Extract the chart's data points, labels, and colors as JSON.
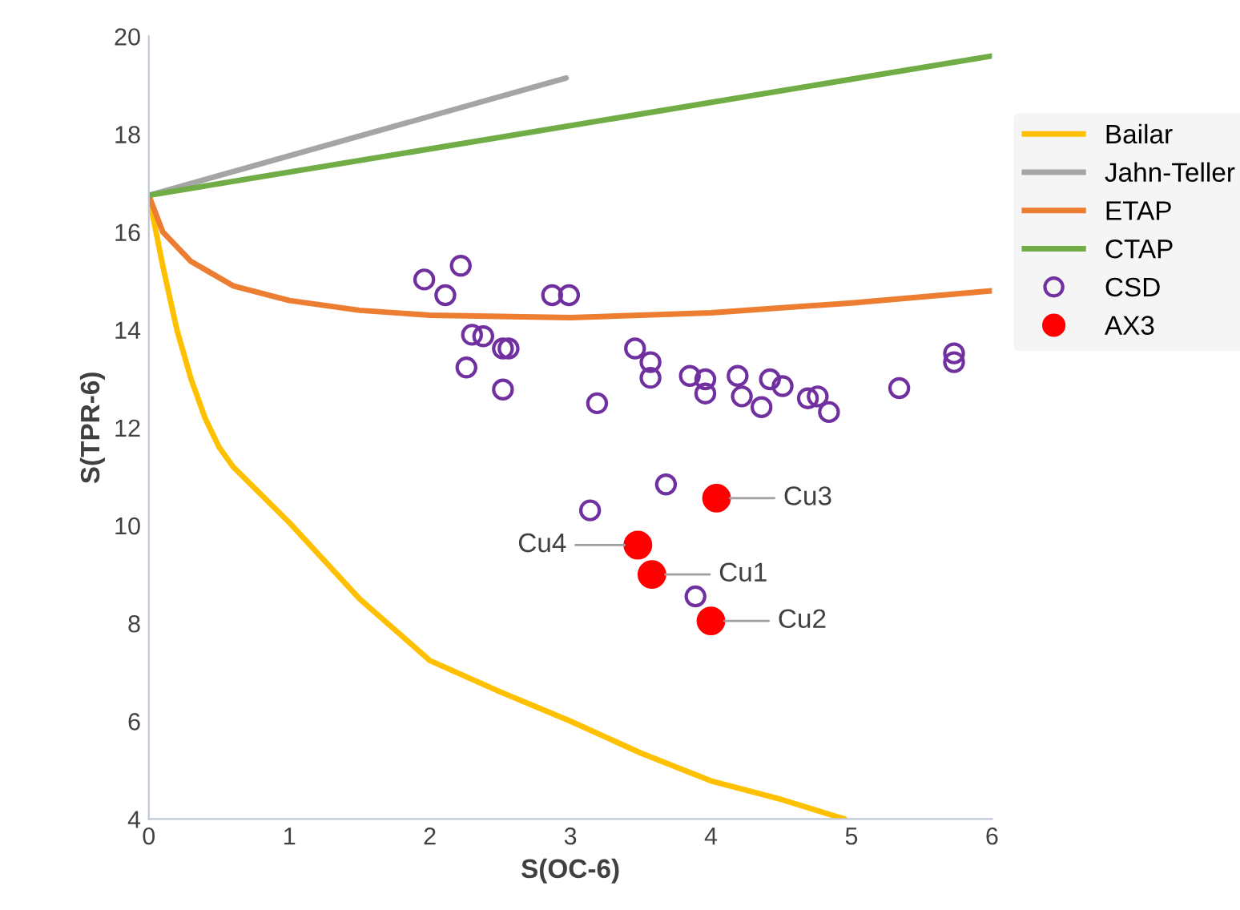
{
  "chart_data": {
    "type": "line",
    "xlabel": "S(OC-6)",
    "ylabel": "S(TPR-6)",
    "xlim": [
      0,
      6
    ],
    "xticks": [
      0,
      1,
      2,
      3,
      4,
      5,
      6
    ],
    "ylim": [
      4,
      20
    ],
    "yticks": [
      4,
      6,
      8,
      10,
      12,
      14,
      16,
      18,
      20
    ],
    "grid": false,
    "legend": "right",
    "series": [
      {
        "name": "Bailar",
        "color": "#ffc000",
        "x": [
          0,
          0.1,
          0.2,
          0.3,
          0.4,
          0.5,
          0.6,
          1,
          1.5,
          2,
          2.5,
          3,
          3.5,
          4,
          4.5,
          4.95
        ],
        "values": [
          16.75,
          15.3,
          14.0,
          13.0,
          12.2,
          11.6,
          11.2,
          10.06,
          8.5,
          7.24,
          6.6,
          6.0,
          5.35,
          4.78,
          4.4,
          4.0
        ]
      },
      {
        "name": "Jahn-Teller",
        "color": "#a5a5a5",
        "x": [
          0,
          2.97
        ],
        "values": [
          16.75,
          19.15
        ]
      },
      {
        "name": "ETAP",
        "color": "#ed7d31",
        "x": [
          0,
          0.1,
          0.3,
          0.6,
          1,
          1.5,
          2,
          3,
          4,
          5,
          6
        ],
        "values": [
          16.75,
          16.0,
          15.4,
          14.9,
          14.6,
          14.4,
          14.3,
          14.25,
          14.35,
          14.55,
          14.8
        ]
      },
      {
        "name": "CTAP",
        "color": "#70ad47",
        "x": [
          0,
          6
        ],
        "values": [
          16.75,
          19.6
        ]
      },
      {
        "name": "CSD",
        "type": "scatter",
        "marker": "circle",
        "color": "#7030a0",
        "x": [
          1.96,
          2.11,
          2.22,
          2.87,
          2.99,
          2.3,
          2.38,
          2.26,
          2.52,
          2.56,
          2.52,
          3.19,
          3.46,
          3.57,
          3.57,
          3.85,
          3.96,
          3.96,
          4.19,
          4.22,
          4.42,
          4.51,
          4.36,
          4.69,
          4.76,
          4.84,
          5.34,
          5.73,
          5.73,
          3.68,
          3.14,
          3.89
        ],
        "values": [
          15.03,
          14.71,
          15.31,
          14.71,
          14.71,
          13.9,
          13.87,
          13.23,
          13.62,
          13.62,
          12.78,
          12.5,
          13.62,
          13.34,
          13.02,
          13.06,
          12.99,
          12.7,
          13.06,
          12.64,
          12.99,
          12.85,
          12.42,
          12.6,
          12.64,
          12.32,
          12.81,
          13.52,
          13.34,
          10.84,
          10.31,
          8.55
        ]
      },
      {
        "name": "AX3",
        "type": "scatter",
        "marker": "circle",
        "color": "#ff0000",
        "x": [
          3.58,
          4.0,
          4.04,
          3.48
        ],
        "values": [
          9.0,
          8.05,
          10.56,
          9.6
        ]
      }
    ],
    "annotations": [
      {
        "text": "Cu1",
        "x": 3.58,
        "y": 9.0
      },
      {
        "text": "Cu2",
        "x": 4.0,
        "y": 8.05
      },
      {
        "text": "Cu3",
        "x": 4.04,
        "y": 10.56
      },
      {
        "text": "Cu4",
        "x": 3.48,
        "y": 9.6
      }
    ]
  }
}
